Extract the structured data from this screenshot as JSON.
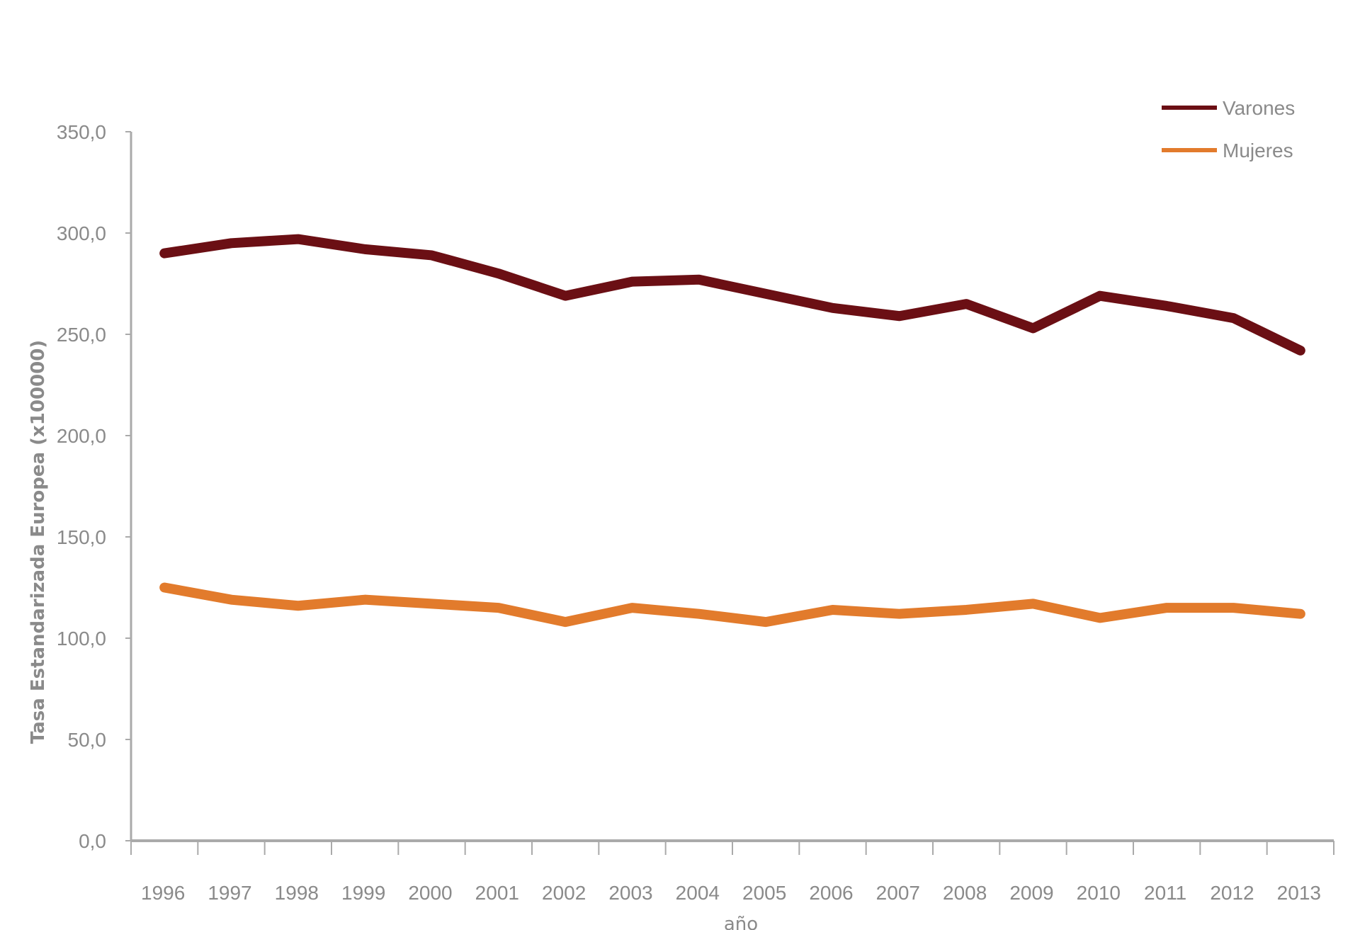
{
  "chart_data": {
    "type": "line",
    "title": "",
    "xlabel": "año",
    "ylabel": "Tasa Estandarizada Europea (x100000)",
    "categories": [
      "1996",
      "1997",
      "1998",
      "1999",
      "2000",
      "2001",
      "2002",
      "2003",
      "2004",
      "2005",
      "2006",
      "2007",
      "2008",
      "2009",
      "2010",
      "2011",
      "2012",
      "2013"
    ],
    "yticks": [
      "0,0",
      "50,0",
      "100,0",
      "150,0",
      "200,0",
      "250,0",
      "300,0",
      "350,0"
    ],
    "ylim": [
      0,
      350
    ],
    "grid": false,
    "legend_position": "top-right",
    "series": [
      {
        "name": "Varones",
        "color": "#6b0f14",
        "values": [
          290,
          295,
          297,
          292,
          289,
          280,
          269,
          276,
          277,
          270,
          263,
          259,
          265,
          253,
          269,
          264,
          258,
          242
        ]
      },
      {
        "name": "Mujeres",
        "color": "#e27b2c",
        "values": [
          125,
          119,
          116,
          119,
          117,
          115,
          108,
          115,
          112,
          108,
          114,
          112,
          114,
          117,
          110,
          115,
          115,
          112
        ]
      }
    ]
  }
}
